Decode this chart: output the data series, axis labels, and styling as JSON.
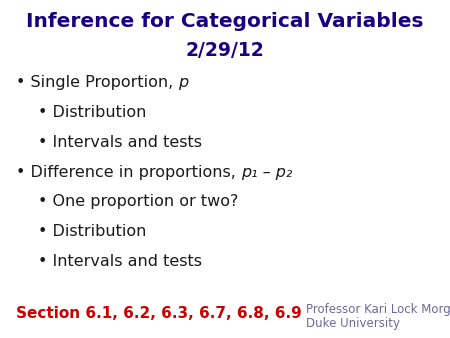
{
  "title_line1": "Inference for Categorical Variables",
  "title_line2": "2/29/12",
  "title_color": "#1a0080",
  "background_color": "#ffffff",
  "bullet_color": "#1a1a1a",
  "bullet_fontsize": 11.5,
  "title_fontsize1": 14.5,
  "title_fontsize2": 13.5,
  "section_fontsize": 11,
  "professor_fontsize": 8.5,
  "section_text": "Section 6.1, 6.2, 6.3, 6.7, 6.8, 6.9",
  "section_color": "#cc0000",
  "professor_line1": "Professor Kari Lock Morgan",
  "professor_line2": "Duke University",
  "professor_color": "#6b6b9b",
  "items": [
    {
      "indent": 0,
      "prefix": "Single Proportion, ",
      "suffix": "p",
      "suffix_italic": true
    },
    {
      "indent": 1,
      "prefix": "Distribution",
      "suffix": "",
      "suffix_italic": false
    },
    {
      "indent": 1,
      "prefix": "Intervals and tests",
      "suffix": "",
      "suffix_italic": false
    },
    {
      "indent": 0,
      "prefix": "Difference in proportions, ",
      "suffix": "p₁ – p₂",
      "suffix_italic": true
    },
    {
      "indent": 1,
      "prefix": "One proportion or two?",
      "suffix": "",
      "suffix_italic": false
    },
    {
      "indent": 1,
      "prefix": "Distribution",
      "suffix": "",
      "suffix_italic": false
    },
    {
      "indent": 1,
      "prefix": "Intervals and tests",
      "suffix": "",
      "suffix_italic": false
    }
  ]
}
